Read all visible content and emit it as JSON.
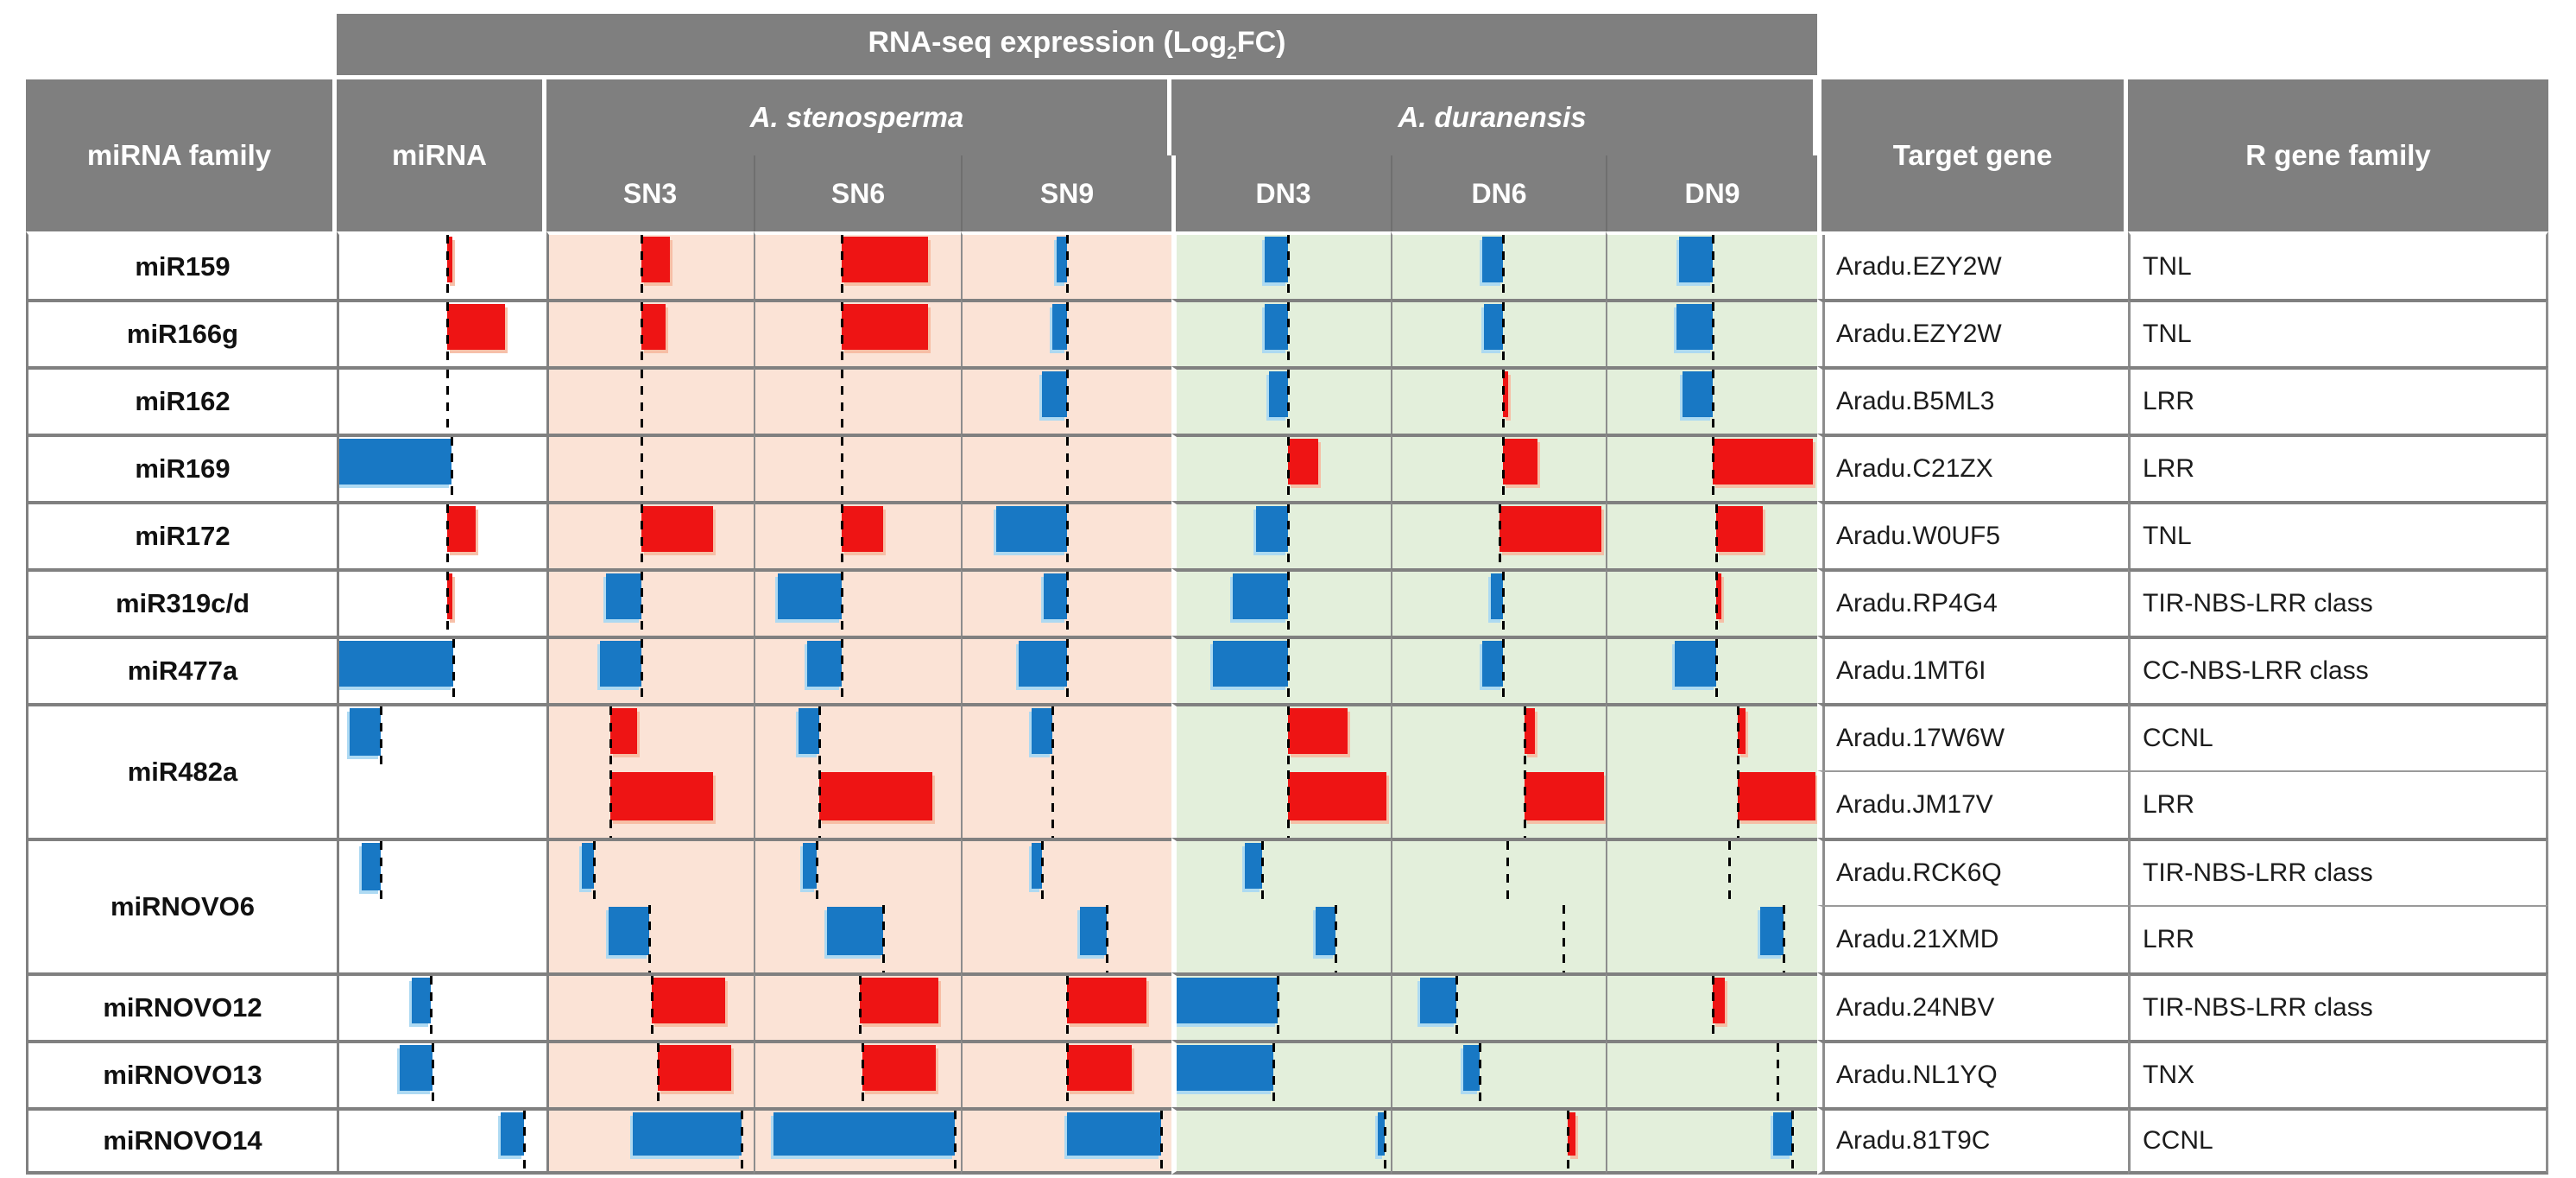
{
  "banner": {
    "prefix": "RNA-seq expression (Log",
    "subscript": "2",
    "suffix": "FC)"
  },
  "header": {
    "mirna_family": "miRNA family",
    "mirna": "miRNA",
    "group_stenosperma": "A. stenosperma",
    "group_duranensis": "A. duranensis",
    "target_gene": "Target gene",
    "r_gene_family": "R gene family"
  },
  "colors": {
    "header_bg": "#7f7f7f",
    "stenosperma_bg": "#fbe3d6",
    "duranensis_bg": "#e3efdb",
    "upregulated_red": "#ee1414",
    "downregulated_blue": "#1878c4",
    "grid_gray": "#808080"
  },
  "chart_data": {
    "type": "bar",
    "title": "RNA-seq expression (Log2FC)",
    "note": "Embedded per-cell horizontal bar charts; axis_pos is the zero-line position as fraction of cell width; bar is signed length as fraction of cell width (positive = red bar to the right = up-regulated, negative = blue bar to the left = down-regulated).",
    "sample_columns": [
      "SN3",
      "SN6",
      "SN9",
      "DN3",
      "DN6",
      "DN9"
    ],
    "groups": [
      {
        "name": "A. stenosperma",
        "samples": [
          "SN3",
          "SN6",
          "SN9"
        ]
      },
      {
        "name": "A. duranensis",
        "samples": [
          "DN3",
          "DN6",
          "DN9"
        ]
      }
    ],
    "rows": [
      {
        "family": "miR159",
        "rowspan": 1,
        "mirna_bar": {
          "axis_pos": 0.52,
          "bar": 0.02
        },
        "bars": {
          "SN3": {
            "axis_pos": 0.45,
            "bar": 0.14
          },
          "SN6": {
            "axis_pos": 0.42,
            "bar": 0.42
          },
          "SN9": {
            "axis_pos": 0.5,
            "bar": -0.05
          },
          "DN3": {
            "axis_pos": 0.52,
            "bar": -0.11
          },
          "DN6": {
            "axis_pos": 0.52,
            "bar": -0.1
          },
          "DN9": {
            "axis_pos": 0.5,
            "bar": -0.16
          }
        },
        "target_gene": "Aradu.EZY2W",
        "r_gene_family": "TNL"
      },
      {
        "family": "miR166g",
        "rowspan": 1,
        "mirna_bar": {
          "axis_pos": 0.52,
          "bar": 0.28
        },
        "bars": {
          "SN3": {
            "axis_pos": 0.45,
            "bar": 0.12
          },
          "SN6": {
            "axis_pos": 0.42,
            "bar": 0.42
          },
          "SN9": {
            "axis_pos": 0.5,
            "bar": -0.07
          },
          "DN3": {
            "axis_pos": 0.52,
            "bar": -0.11
          },
          "DN6": {
            "axis_pos": 0.52,
            "bar": -0.09
          },
          "DN9": {
            "axis_pos": 0.5,
            "bar": -0.17
          }
        },
        "target_gene": "Aradu.EZY2W",
        "r_gene_family": "TNL"
      },
      {
        "family": "miR162",
        "rowspan": 1,
        "mirna_bar": {
          "axis_pos": 0.52,
          "bar": 0
        },
        "bars": {
          "SN3": {
            "axis_pos": 0.45,
            "bar": 0
          },
          "SN6": {
            "axis_pos": 0.42,
            "bar": 0
          },
          "SN9": {
            "axis_pos": 0.5,
            "bar": -0.12
          },
          "DN3": {
            "axis_pos": 0.52,
            "bar": -0.09
          },
          "DN6": {
            "axis_pos": 0.52,
            "bar": 0.02
          },
          "DN9": {
            "axis_pos": 0.5,
            "bar": -0.14
          }
        },
        "target_gene": "Aradu.B5ML3",
        "r_gene_family": "LRR"
      },
      {
        "family": "miR169",
        "rowspan": 1,
        "mirna_bar": {
          "axis_pos": 0.54,
          "bar": -0.54
        },
        "bars": {
          "SN3": {
            "axis_pos": 0.45,
            "bar": 0
          },
          "SN6": {
            "axis_pos": 0.42,
            "bar": 0
          },
          "SN9": {
            "axis_pos": 0.5,
            "bar": 0
          },
          "DN3": {
            "axis_pos": 0.52,
            "bar": 0.14
          },
          "DN6": {
            "axis_pos": 0.52,
            "bar": 0.16
          },
          "DN9": {
            "axis_pos": 0.5,
            "bar": 0.48
          }
        },
        "target_gene": "Aradu.C21ZX",
        "r_gene_family": "LRR"
      },
      {
        "family": "miR172",
        "rowspan": 1,
        "mirna_bar": {
          "axis_pos": 0.52,
          "bar": 0.14
        },
        "bars": {
          "SN3": {
            "axis_pos": 0.45,
            "bar": 0.35
          },
          "SN6": {
            "axis_pos": 0.42,
            "bar": 0.2
          },
          "SN9": {
            "axis_pos": 0.5,
            "bar": -0.34
          },
          "DN3": {
            "axis_pos": 0.52,
            "bar": -0.15
          },
          "DN6": {
            "axis_pos": 0.5,
            "bar": 0.48
          },
          "DN9": {
            "axis_pos": 0.52,
            "bar": 0.22
          }
        },
        "target_gene": "Aradu.W0UF5",
        "r_gene_family": "TNL"
      },
      {
        "family": "miR319c/d",
        "rowspan": 1,
        "mirna_bar": {
          "axis_pos": 0.52,
          "bar": 0.02
        },
        "bars": {
          "SN3": {
            "axis_pos": 0.45,
            "bar": -0.17
          },
          "SN6": {
            "axis_pos": 0.42,
            "bar": -0.31
          },
          "SN9": {
            "axis_pos": 0.5,
            "bar": -0.11
          },
          "DN3": {
            "axis_pos": 0.52,
            "bar": -0.26
          },
          "DN6": {
            "axis_pos": 0.52,
            "bar": -0.06
          },
          "DN9": {
            "axis_pos": 0.52,
            "bar": 0.02
          }
        },
        "target_gene": "Aradu.RP4G4",
        "r_gene_family": "TIR-NBS-LRR class"
      },
      {
        "family": "miR477a",
        "rowspan": 1,
        "mirna_bar": {
          "axis_pos": 0.55,
          "bar": -0.55
        },
        "bars": {
          "SN3": {
            "axis_pos": 0.45,
            "bar": -0.2
          },
          "SN6": {
            "axis_pos": 0.42,
            "bar": -0.17
          },
          "SN9": {
            "axis_pos": 0.5,
            "bar": -0.23
          },
          "DN3": {
            "axis_pos": 0.52,
            "bar": -0.35
          },
          "DN6": {
            "axis_pos": 0.52,
            "bar": -0.1
          },
          "DN9": {
            "axis_pos": 0.52,
            "bar": -0.2
          }
        },
        "target_gene": "Aradu.1MT6I",
        "r_gene_family": "CC-NBS-LRR class"
      },
      {
        "family": "miR482a",
        "rowspan": 2,
        "mirna_bar": {
          "axis_pos": 0.2,
          "bar": -0.15
        },
        "bars": {
          "SN3": {
            "axis_pos": 0.3,
            "bar": 0.13
          },
          "SN6": {
            "axis_pos": 0.31,
            "bar": -0.1
          },
          "SN9": {
            "axis_pos": 0.43,
            "bar": -0.1
          },
          "DN3": {
            "axis_pos": 0.52,
            "bar": 0.28
          },
          "DN6": {
            "axis_pos": 0.62,
            "bar": 0.05
          },
          "DN9": {
            "axis_pos": 0.62,
            "bar": 0.04
          }
        },
        "target_gene": "Aradu.17W6W",
        "r_gene_family": "CCNL"
      },
      {
        "continuation": true,
        "bars": {
          "SN3": {
            "axis_pos": 0.3,
            "bar": 0.5
          },
          "SN6": {
            "axis_pos": 0.31,
            "bar": 0.55
          },
          "SN9": {
            "axis_pos": 0.43,
            "bar": 0
          },
          "DN3": {
            "axis_pos": 0.52,
            "bar": 0.46
          },
          "DN6": {
            "axis_pos": 0.62,
            "bar": 0.37
          },
          "DN9": {
            "axis_pos": 0.62,
            "bar": 0.37
          }
        },
        "target_gene": "Aradu.JM17V",
        "r_gene_family": "LRR"
      },
      {
        "family": "miRNOVO6",
        "rowspan": 2,
        "mirna_bar": {
          "axis_pos": 0.2,
          "bar": -0.09
        },
        "bars": {
          "SN3": {
            "axis_pos": 0.22,
            "bar": -0.06
          },
          "SN6": {
            "axis_pos": 0.3,
            "bar": -0.07
          },
          "SN9": {
            "axis_pos": 0.38,
            "bar": -0.05
          },
          "DN3": {
            "axis_pos": 0.4,
            "bar": -0.08
          },
          "DN6": {
            "axis_pos": 0.54,
            "bar": 0
          },
          "DN9": {
            "axis_pos": 0.58,
            "bar": 0
          }
        },
        "target_gene": "Aradu.RCK6Q",
        "r_gene_family": "TIR-NBS-LRR class"
      },
      {
        "continuation": true,
        "bars": {
          "SN3": {
            "axis_pos": 0.49,
            "bar": -0.2
          },
          "SN6": {
            "axis_pos": 0.62,
            "bar": -0.27
          },
          "SN9": {
            "axis_pos": 0.69,
            "bar": -0.13
          },
          "DN3": {
            "axis_pos": 0.74,
            "bar": -0.09
          },
          "DN6": {
            "axis_pos": 0.8,
            "bar": 0
          },
          "DN9": {
            "axis_pos": 0.84,
            "bar": -0.11
          }
        },
        "target_gene": "Aradu.21XMD",
        "r_gene_family": "LRR"
      },
      {
        "family": "miRNOVO12",
        "rowspan": 1,
        "mirna_bar": {
          "axis_pos": 0.44,
          "bar": -0.09
        },
        "bars": {
          "SN3": {
            "axis_pos": 0.5,
            "bar": 0.36
          },
          "SN6": {
            "axis_pos": 0.51,
            "bar": 0.38
          },
          "SN9": {
            "axis_pos": 0.5,
            "bar": 0.38
          },
          "DN3": {
            "axis_pos": 0.47,
            "bar": -0.47
          },
          "DN6": {
            "axis_pos": 0.3,
            "bar": -0.17
          },
          "DN9": {
            "axis_pos": 0.5,
            "bar": 0.06
          }
        },
        "target_gene": "Aradu.24NBV",
        "r_gene_family": "TIR-NBS-LRR class"
      },
      {
        "family": "miRNOVO13",
        "rowspan": 1,
        "mirna_bar": {
          "axis_pos": 0.45,
          "bar": -0.16
        },
        "bars": {
          "SN3": {
            "axis_pos": 0.53,
            "bar": 0.36
          },
          "SN6": {
            "axis_pos": 0.52,
            "bar": 0.36
          },
          "SN9": {
            "axis_pos": 0.5,
            "bar": 0.31
          },
          "DN3": {
            "axis_pos": 0.45,
            "bar": -0.45
          },
          "DN6": {
            "axis_pos": 0.41,
            "bar": -0.08
          },
          "DN9": {
            "axis_pos": 0.81,
            "bar": 0
          }
        },
        "target_gene": "Aradu.NL1YQ",
        "r_gene_family": "TNX"
      },
      {
        "family": "miRNOVO14",
        "rowspan": 1,
        "mirna_bar": {
          "axis_pos": 0.89,
          "bar": -0.11
        },
        "bars": {
          "SN3": {
            "axis_pos": 0.94,
            "bar": -0.53
          },
          "SN6": {
            "axis_pos": 0.97,
            "bar": -0.88
          },
          "SN9": {
            "axis_pos": 0.95,
            "bar": -0.45
          },
          "DN3": {
            "axis_pos": 0.97,
            "bar": -0.03
          },
          "DN6": {
            "axis_pos": 0.82,
            "bar": 0.04
          },
          "DN9": {
            "axis_pos": 0.88,
            "bar": -0.09
          }
        },
        "target_gene": "Aradu.81T9C",
        "r_gene_family": "CCNL"
      }
    ]
  }
}
